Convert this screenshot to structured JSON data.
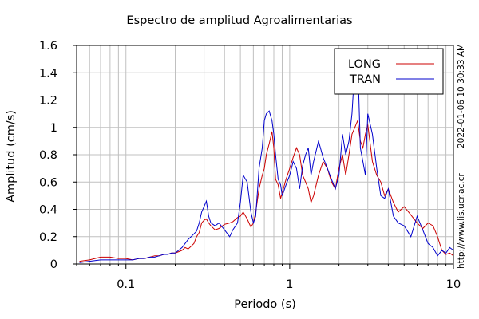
{
  "chart_data": {
    "type": "line",
    "title": "Espectro de amplitud Agroalimentarias",
    "xlabel": "Periodo (s)",
    "ylabel": "Amplitud (cm/s)",
    "xscale": "log",
    "xlim": [
      0.05,
      10
    ],
    "ylim": [
      0,
      1.6
    ],
    "xticks": [
      {
        "value": 0.1,
        "label": "0.1"
      },
      {
        "value": 1,
        "label": "1"
      },
      {
        "value": 10,
        "label": "10"
      }
    ],
    "yticks": [
      {
        "value": 0,
        "label": "0"
      },
      {
        "value": 0.2,
        "label": "0.2"
      },
      {
        "value": 0.4,
        "label": "0.4"
      },
      {
        "value": 0.6,
        "label": "0.6"
      },
      {
        "value": 0.8,
        "label": "0.8"
      },
      {
        "value": 1.0,
        "label": "1"
      },
      {
        "value": 1.2,
        "label": "1.2"
      },
      {
        "value": 1.4,
        "label": "1.4"
      },
      {
        "value": 1.6,
        "label": "1.6"
      }
    ],
    "grid": true,
    "legend_position": "top-right",
    "series": [
      {
        "name": "LONG",
        "color": "#cc0000",
        "x": [
          0.052,
          0.06,
          0.07,
          0.08,
          0.09,
          0.1,
          0.11,
          0.12,
          0.13,
          0.14,
          0.15,
          0.16,
          0.17,
          0.18,
          0.19,
          0.2,
          0.21,
          0.22,
          0.23,
          0.24,
          0.25,
          0.26,
          0.27,
          0.28,
          0.29,
          0.3,
          0.31,
          0.32,
          0.33,
          0.35,
          0.37,
          0.4,
          0.43,
          0.45,
          0.48,
          0.5,
          0.52,
          0.55,
          0.58,
          0.6,
          0.62,
          0.65,
          0.68,
          0.7,
          0.72,
          0.75,
          0.78,
          0.8,
          0.82,
          0.85,
          0.88,
          0.9,
          0.95,
          1.0,
          1.05,
          1.1,
          1.15,
          1.2,
          1.25,
          1.3,
          1.35,
          1.4,
          1.5,
          1.6,
          1.7,
          1.8,
          1.9,
          2.0,
          2.1,
          2.2,
          2.3,
          2.4,
          2.5,
          2.6,
          2.7,
          2.8,
          2.9,
          3.0,
          3.2,
          3.4,
          3.6,
          3.8,
          4.0,
          4.3,
          4.6,
          5.0,
          5.5,
          6.0,
          6.5,
          7.0,
          7.5,
          8.0,
          8.5,
          9.0,
          9.5,
          10.0
        ],
        "y": [
          0.02,
          0.03,
          0.05,
          0.05,
          0.04,
          0.04,
          0.03,
          0.04,
          0.04,
          0.05,
          0.06,
          0.06,
          0.07,
          0.07,
          0.08,
          0.08,
          0.09,
          0.1,
          0.12,
          0.11,
          0.13,
          0.15,
          0.2,
          0.23,
          0.3,
          0.32,
          0.33,
          0.3,
          0.28,
          0.25,
          0.26,
          0.29,
          0.3,
          0.31,
          0.34,
          0.35,
          0.38,
          0.33,
          0.27,
          0.3,
          0.38,
          0.55,
          0.65,
          0.7,
          0.8,
          0.88,
          0.97,
          0.85,
          0.62,
          0.58,
          0.48,
          0.52,
          0.62,
          0.7,
          0.78,
          0.85,
          0.8,
          0.65,
          0.6,
          0.55,
          0.45,
          0.5,
          0.65,
          0.75,
          0.7,
          0.6,
          0.55,
          0.7,
          0.8,
          0.65,
          0.8,
          0.95,
          1.0,
          1.05,
          0.9,
          0.85,
          0.95,
          1.02,
          0.75,
          0.65,
          0.6,
          0.5,
          0.55,
          0.45,
          0.38,
          0.42,
          0.36,
          0.3,
          0.26,
          0.3,
          0.28,
          0.2,
          0.1,
          0.07,
          0.08,
          0.06
        ]
      },
      {
        "name": "TRAN",
        "color": "#0000cc",
        "x": [
          0.052,
          0.06,
          0.07,
          0.08,
          0.09,
          0.1,
          0.11,
          0.12,
          0.13,
          0.14,
          0.15,
          0.16,
          0.17,
          0.18,
          0.19,
          0.2,
          0.21,
          0.22,
          0.23,
          0.24,
          0.25,
          0.26,
          0.27,
          0.28,
          0.29,
          0.3,
          0.31,
          0.32,
          0.33,
          0.35,
          0.37,
          0.4,
          0.43,
          0.45,
          0.48,
          0.5,
          0.52,
          0.55,
          0.58,
          0.6,
          0.62,
          0.65,
          0.68,
          0.7,
          0.72,
          0.75,
          0.78,
          0.8,
          0.82,
          0.85,
          0.88,
          0.9,
          0.95,
          1.0,
          1.05,
          1.1,
          1.15,
          1.2,
          1.25,
          1.3,
          1.35,
          1.4,
          1.5,
          1.6,
          1.7,
          1.8,
          1.9,
          2.0,
          2.1,
          2.2,
          2.3,
          2.4,
          2.5,
          2.6,
          2.7,
          2.8,
          2.9,
          3.0,
          3.2,
          3.4,
          3.6,
          3.8,
          4.0,
          4.3,
          4.6,
          5.0,
          5.5,
          6.0,
          6.5,
          7.0,
          7.5,
          8.0,
          8.5,
          9.0,
          9.5,
          10.0
        ],
        "y": [
          0.01,
          0.02,
          0.03,
          0.03,
          0.03,
          0.03,
          0.03,
          0.04,
          0.04,
          0.05,
          0.05,
          0.06,
          0.07,
          0.07,
          0.08,
          0.08,
          0.1,
          0.12,
          0.15,
          0.18,
          0.2,
          0.22,
          0.24,
          0.3,
          0.38,
          0.42,
          0.46,
          0.35,
          0.3,
          0.28,
          0.3,
          0.25,
          0.2,
          0.25,
          0.3,
          0.45,
          0.65,
          0.6,
          0.38,
          0.3,
          0.35,
          0.7,
          0.85,
          1.05,
          1.1,
          1.12,
          1.05,
          0.95,
          0.8,
          0.62,
          0.58,
          0.5,
          0.58,
          0.65,
          0.75,
          0.7,
          0.55,
          0.72,
          0.8,
          0.85,
          0.65,
          0.75,
          0.9,
          0.78,
          0.7,
          0.62,
          0.55,
          0.65,
          0.95,
          0.8,
          0.9,
          1.1,
          1.45,
          1.52,
          0.85,
          0.75,
          0.65,
          1.1,
          0.95,
          0.7,
          0.5,
          0.48,
          0.55,
          0.35,
          0.3,
          0.28,
          0.2,
          0.35,
          0.25,
          0.15,
          0.12,
          0.06,
          0.1,
          0.08,
          0.12,
          0.1
        ]
      }
    ],
    "side_labels": {
      "timestamp": "2022-01-06 10:30:33 AM",
      "url": "http://www.lis.ucr.ac.cr"
    }
  }
}
